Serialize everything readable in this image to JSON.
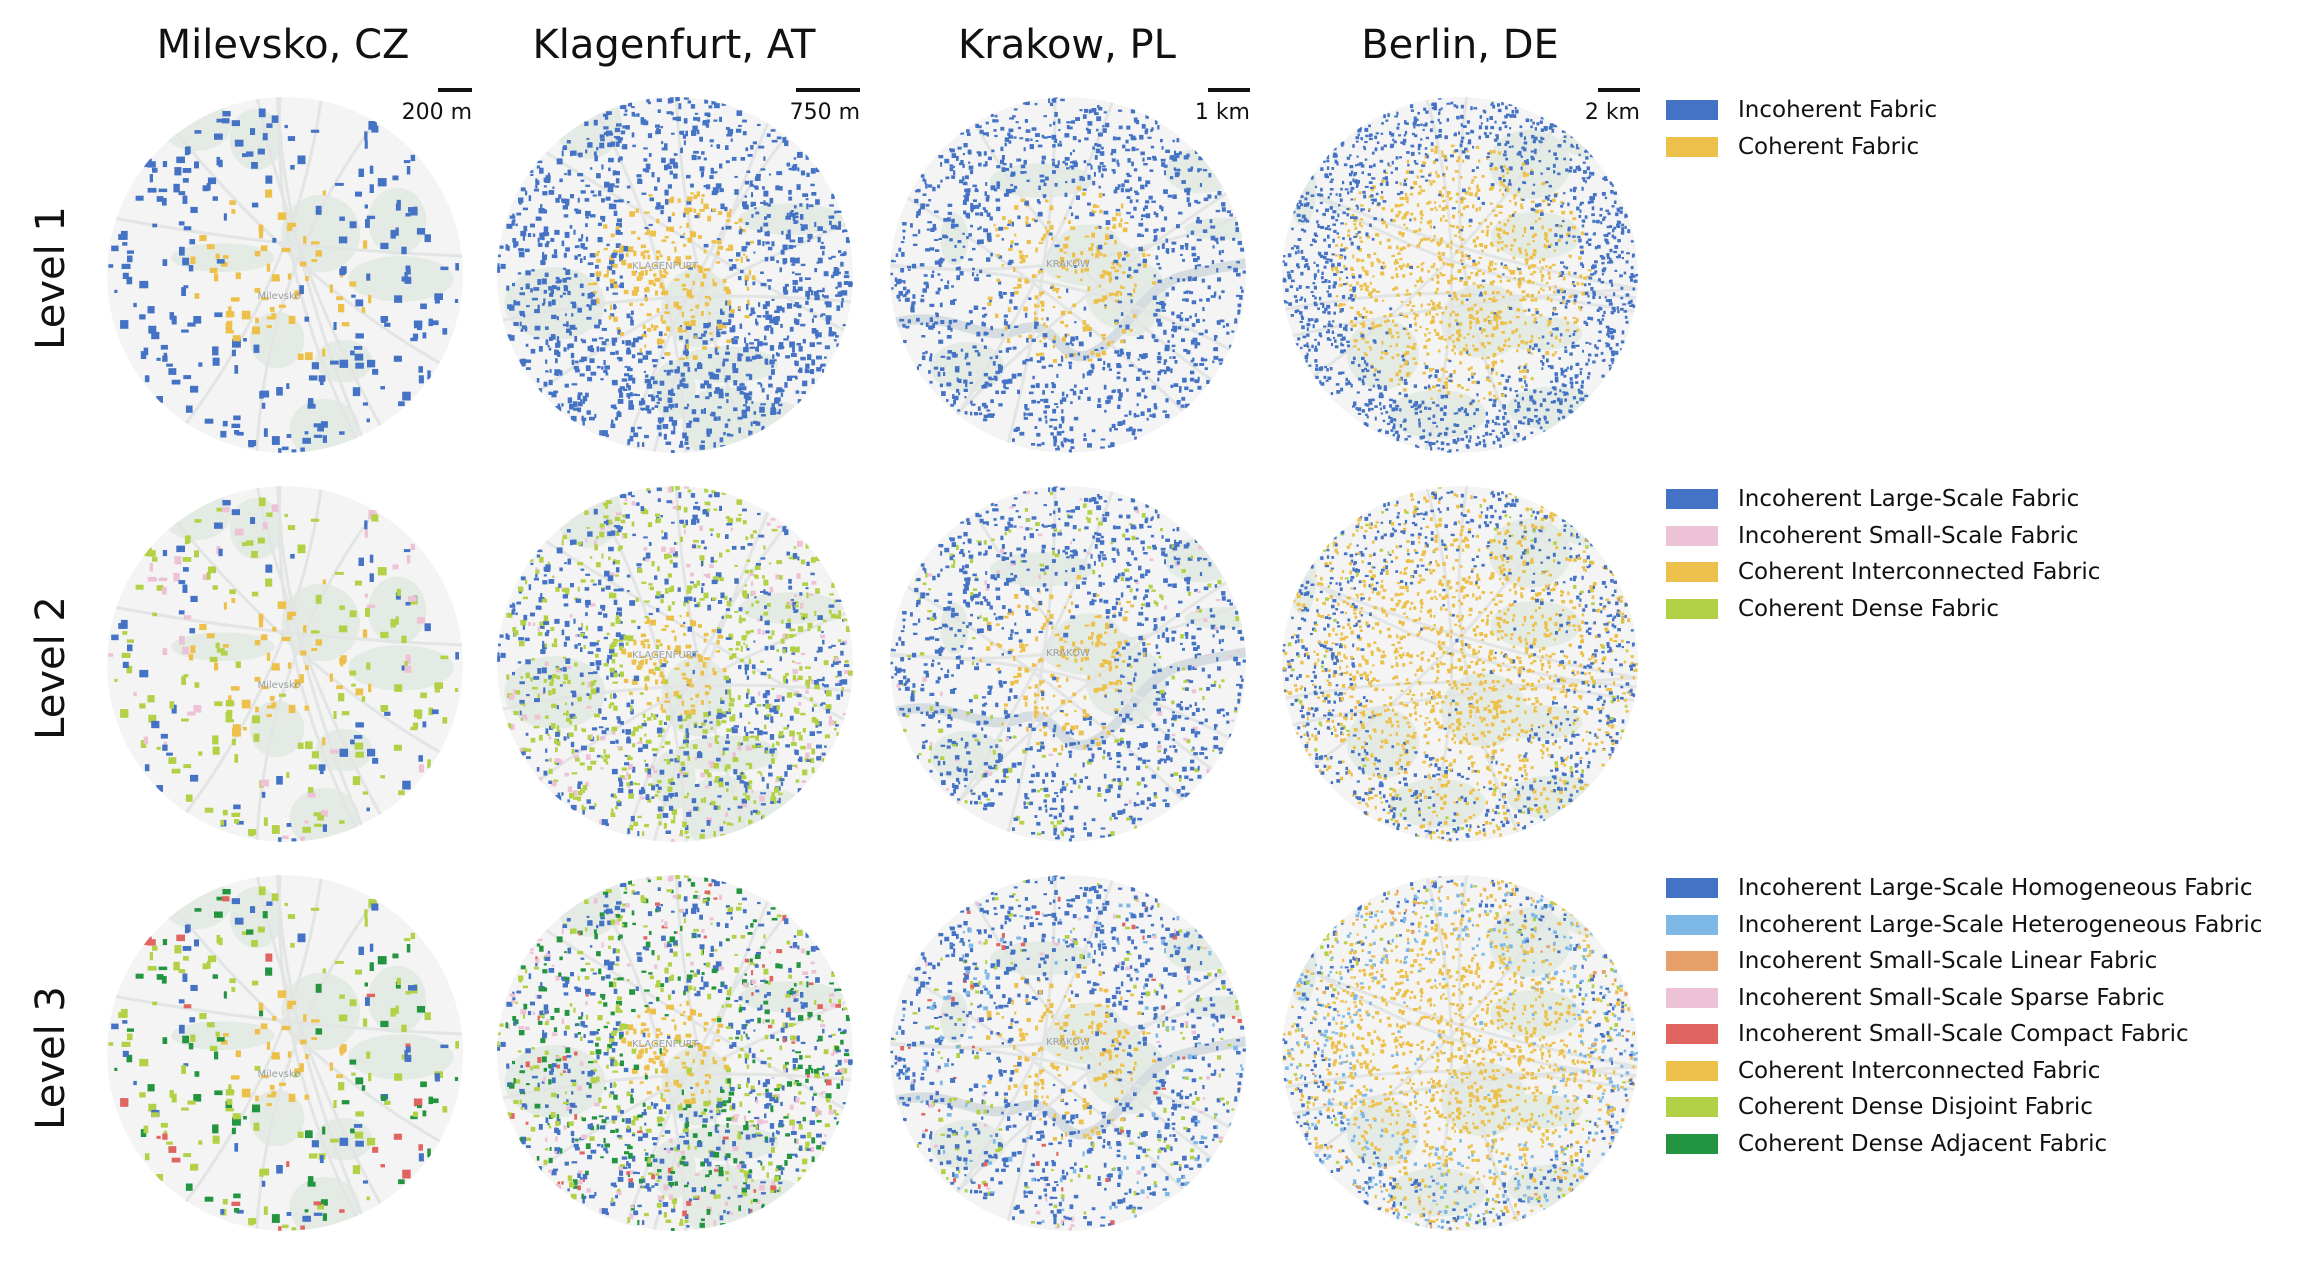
{
  "columns": [
    {
      "title": "Milevsko, CZ",
      "scale": "200 m"
    },
    {
      "title": "Klagenfurt, AT",
      "scale": "750 m"
    },
    {
      "title": "Krakow, PL",
      "scale": "1 km"
    },
    {
      "title": "Berlin, DE",
      "scale": "2 km"
    }
  ],
  "rows": [
    {
      "title": "Level 1"
    },
    {
      "title": "Level 2"
    },
    {
      "title": "Level 3"
    }
  ],
  "map_labels": {
    "klagenfurt": "KLAGENFURT",
    "krakow": "KRAKÓW",
    "milevsko": "Milevsko"
  },
  "legends": [
    [
      {
        "label": "Incoherent Fabric",
        "color": "#4472c4"
      },
      {
        "label": "Coherent Fabric",
        "color": "#ecc04a"
      }
    ],
    [
      {
        "label": "Incoherent Large-Scale Fabric",
        "color": "#4472c4"
      },
      {
        "label": "Incoherent Small-Scale Fabric",
        "color": "#eec2d6"
      },
      {
        "label": "Coherent Interconnected Fabric",
        "color": "#ecc04a"
      },
      {
        "label": "Coherent Dense Fabric",
        "color": "#b3d147"
      }
    ],
    [
      {
        "label": "Incoherent Large-Scale Homogeneous Fabric",
        "color": "#4472c4"
      },
      {
        "label": "Incoherent Large-Scale Heterogeneous Fabric",
        "color": "#7db8e6"
      },
      {
        "label": "Incoherent Small-Scale Linear Fabric",
        "color": "#e8a06a"
      },
      {
        "label": "Incoherent Small-Scale Sparse Fabric",
        "color": "#eec2d6"
      },
      {
        "label": "Incoherent Small-Scale Compact Fabric",
        "color": "#e06560"
      },
      {
        "label": "Coherent Interconnected Fabric",
        "color": "#ecc04a"
      },
      {
        "label": "Coherent Dense Disjoint Fabric",
        "color": "#b3d147"
      },
      {
        "label": "Coherent Dense Adjacent Fabric",
        "color": "#23943f"
      }
    ]
  ]
}
